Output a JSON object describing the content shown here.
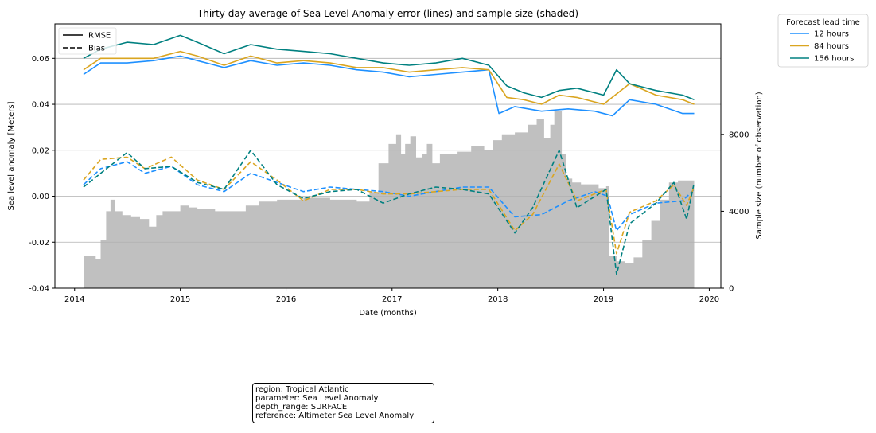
{
  "chart_data": {
    "type": "line",
    "title": "Thirty day average of Sea Level Anomaly error (lines) and sample size (shaded)",
    "xlabel": "Date (months)",
    "ylabel": "Sea level anomaly [Meters]",
    "y2label": "Sample size (number of observation)",
    "xlim": [
      "2013-10-25",
      "2020-02-10"
    ],
    "ylim": [
      -0.04,
      0.075
    ],
    "y2lim": [
      0,
      13750
    ],
    "x_ticks": [
      "2014",
      "2015",
      "2016",
      "2017",
      "2018",
      "2019",
      "2020"
    ],
    "y_ticks": [
      "-0.04",
      "-0.02",
      "0.00",
      "0.02",
      "0.04",
      "0.06"
    ],
    "y2_ticks": [
      "0",
      "4000",
      "8000"
    ],
    "grid": "horizontal",
    "style_legend": [
      {
        "label": "RMSE",
        "dash": "solid"
      },
      {
        "label": "Bias",
        "dash": "dashed"
      }
    ],
    "lead_legend": {
      "title": "Forecast lead time",
      "entries": [
        {
          "label": "12 hours",
          "color": "#1e90ff"
        },
        {
          "label": "84 hours",
          "color": "#daa520"
        },
        {
          "label": "156 hours",
          "color": "#008080"
        }
      ]
    },
    "sample_size": {
      "color": "#c0c0c0",
      "points": [
        [
          "2014-02-01",
          1700
        ],
        [
          "2014-02-25",
          1700
        ],
        [
          "2014-03-15",
          1500
        ],
        [
          "2014-04-01",
          2500
        ],
        [
          "2014-04-20",
          4000
        ],
        [
          "2014-05-05",
          4600
        ],
        [
          "2014-05-20",
          4000
        ],
        [
          "2014-06-15",
          3800
        ],
        [
          "2014-07-15",
          3700
        ],
        [
          "2014-08-15",
          3600
        ],
        [
          "2014-09-15",
          3200
        ],
        [
          "2014-10-10",
          3800
        ],
        [
          "2014-11-01",
          4000
        ],
        [
          "2014-12-01",
          4000
        ],
        [
          "2015-01-01",
          4300
        ],
        [
          "2015-02-01",
          4200
        ],
        [
          "2015-03-01",
          4100
        ],
        [
          "2015-05-01",
          4000
        ],
        [
          "2015-07-01",
          4000
        ],
        [
          "2015-08-15",
          4300
        ],
        [
          "2015-10-01",
          4500
        ],
        [
          "2015-12-01",
          4600
        ],
        [
          "2016-03-01",
          4700
        ],
        [
          "2016-06-01",
          4600
        ],
        [
          "2016-09-01",
          4500
        ],
        [
          "2016-10-15",
          5000
        ],
        [
          "2016-11-15",
          6500
        ],
        [
          "2016-12-20",
          7500
        ],
        [
          "2017-01-15",
          8000
        ],
        [
          "2017-02-01",
          7000
        ],
        [
          "2017-02-15",
          7500
        ],
        [
          "2017-03-05",
          7900
        ],
        [
          "2017-03-25",
          6800
        ],
        [
          "2017-04-15",
          7000
        ],
        [
          "2017-05-01",
          7500
        ],
        [
          "2017-05-20",
          6500
        ],
        [
          "2017-06-15",
          7000
        ],
        [
          "2017-08-15",
          7100
        ],
        [
          "2017-10-01",
          7400
        ],
        [
          "2017-11-15",
          7200
        ],
        [
          "2017-12-15",
          7700
        ],
        [
          "2018-01-15",
          8000
        ],
        [
          "2018-03-01",
          8100
        ],
        [
          "2018-04-15",
          8500
        ],
        [
          "2018-05-15",
          8800
        ],
        [
          "2018-06-10",
          7800
        ],
        [
          "2018-07-01",
          8500
        ],
        [
          "2018-07-15",
          9200
        ],
        [
          "2018-08-10",
          7000
        ],
        [
          "2018-08-25",
          5700
        ],
        [
          "2018-09-15",
          5500
        ],
        [
          "2018-10-15",
          5400
        ],
        [
          "2018-12-15",
          5200
        ],
        [
          "2019-01-10",
          5300
        ],
        [
          "2019-01-20",
          1700
        ],
        [
          "2019-02-15",
          1400
        ],
        [
          "2019-03-15",
          1300
        ],
        [
          "2019-04-15",
          1600
        ],
        [
          "2019-05-15",
          2500
        ],
        [
          "2019-06-15",
          3500
        ],
        [
          "2019-07-15",
          4600
        ],
        [
          "2019-08-15",
          5500
        ],
        [
          "2019-09-15",
          5600
        ],
        [
          "2019-10-15",
          5600
        ],
        [
          "2019-11-10",
          5500
        ]
      ]
    },
    "series": [
      {
        "name": "12 hours",
        "metric": "RMSE",
        "color": "#1e90ff",
        "dash": "solid",
        "points": [
          [
            "2014-02-01",
            0.053
          ],
          [
            "2014-04-01",
            0.058
          ],
          [
            "2014-07-01",
            0.058
          ],
          [
            "2014-10-01",
            0.059
          ],
          [
            "2015-01-01",
            0.061
          ],
          [
            "2015-03-01",
            0.059
          ],
          [
            "2015-06-01",
            0.056
          ],
          [
            "2015-09-01",
            0.059
          ],
          [
            "2015-12-01",
            0.057
          ],
          [
            "2016-03-01",
            0.058
          ],
          [
            "2016-06-01",
            0.057
          ],
          [
            "2016-09-01",
            0.055
          ],
          [
            "2016-12-01",
            0.054
          ],
          [
            "2017-03-01",
            0.052
          ],
          [
            "2017-06-01",
            0.053
          ],
          [
            "2017-09-01",
            0.054
          ],
          [
            "2017-12-01",
            0.055
          ],
          [
            "2018-01-05",
            0.036
          ],
          [
            "2018-03-01",
            0.039
          ],
          [
            "2018-06-01",
            0.037
          ],
          [
            "2018-09-01",
            0.038
          ],
          [
            "2018-12-01",
            0.037
          ],
          [
            "2019-02-01",
            0.035
          ],
          [
            "2019-04-01",
            0.042
          ],
          [
            "2019-07-01",
            0.04
          ],
          [
            "2019-10-01",
            0.036
          ],
          [
            "2019-11-10",
            0.036
          ]
        ]
      },
      {
        "name": "84 hours",
        "metric": "RMSE",
        "color": "#daa520",
        "dash": "solid",
        "points": [
          [
            "2014-02-01",
            0.055
          ],
          [
            "2014-04-01",
            0.06
          ],
          [
            "2014-07-01",
            0.06
          ],
          [
            "2014-10-01",
            0.06
          ],
          [
            "2015-01-01",
            0.063
          ],
          [
            "2015-03-01",
            0.061
          ],
          [
            "2015-06-01",
            0.057
          ],
          [
            "2015-09-01",
            0.061
          ],
          [
            "2015-12-01",
            0.058
          ],
          [
            "2016-03-01",
            0.059
          ],
          [
            "2016-06-01",
            0.058
          ],
          [
            "2016-09-01",
            0.056
          ],
          [
            "2016-12-01",
            0.056
          ],
          [
            "2017-03-01",
            0.054
          ],
          [
            "2017-06-01",
            0.055
          ],
          [
            "2017-09-01",
            0.056
          ],
          [
            "2017-12-01",
            0.055
          ],
          [
            "2018-02-01",
            0.043
          ],
          [
            "2018-04-01",
            0.042
          ],
          [
            "2018-06-01",
            0.04
          ],
          [
            "2018-08-01",
            0.044
          ],
          [
            "2018-10-01",
            0.043
          ],
          [
            "2019-01-01",
            0.04
          ],
          [
            "2019-04-01",
            0.049
          ],
          [
            "2019-07-01",
            0.044
          ],
          [
            "2019-10-01",
            0.042
          ],
          [
            "2019-11-10",
            0.04
          ]
        ]
      },
      {
        "name": "156 hours",
        "metric": "RMSE",
        "color": "#008080",
        "dash": "solid",
        "points": [
          [
            "2014-02-01",
            0.06
          ],
          [
            "2014-04-01",
            0.064
          ],
          [
            "2014-07-01",
            0.067
          ],
          [
            "2014-10-01",
            0.066
          ],
          [
            "2015-01-01",
            0.07
          ],
          [
            "2015-03-01",
            0.067
          ],
          [
            "2015-06-01",
            0.062
          ],
          [
            "2015-09-01",
            0.066
          ],
          [
            "2015-12-01",
            0.064
          ],
          [
            "2016-03-01",
            0.063
          ],
          [
            "2016-06-01",
            0.062
          ],
          [
            "2016-09-01",
            0.06
          ],
          [
            "2016-12-01",
            0.058
          ],
          [
            "2017-03-01",
            0.057
          ],
          [
            "2017-06-01",
            0.058
          ],
          [
            "2017-09-01",
            0.06
          ],
          [
            "2017-12-01",
            0.057
          ],
          [
            "2018-02-01",
            0.048
          ],
          [
            "2018-04-01",
            0.045
          ],
          [
            "2018-06-01",
            0.043
          ],
          [
            "2018-08-01",
            0.046
          ],
          [
            "2018-10-01",
            0.047
          ],
          [
            "2019-01-01",
            0.044
          ],
          [
            "2019-02-15",
            0.055
          ],
          [
            "2019-04-01",
            0.049
          ],
          [
            "2019-07-01",
            0.046
          ],
          [
            "2019-10-01",
            0.044
          ],
          [
            "2019-11-10",
            0.042
          ]
        ]
      },
      {
        "name": "12 hours",
        "metric": "Bias",
        "color": "#1e90ff",
        "dash": "dashed",
        "points": [
          [
            "2014-02-01",
            0.005
          ],
          [
            "2014-04-01",
            0.012
          ],
          [
            "2014-07-01",
            0.015
          ],
          [
            "2014-09-01",
            0.01
          ],
          [
            "2014-12-01",
            0.013
          ],
          [
            "2015-03-01",
            0.005
          ],
          [
            "2015-06-01",
            0.002
          ],
          [
            "2015-09-01",
            0.01
          ],
          [
            "2015-12-01",
            0.006
          ],
          [
            "2016-03-01",
            0.002
          ],
          [
            "2016-06-01",
            0.004
          ],
          [
            "2016-09-01",
            0.003
          ],
          [
            "2016-12-01",
            0.002
          ],
          [
            "2017-03-01",
            0.0
          ],
          [
            "2017-06-01",
            0.002
          ],
          [
            "2017-09-01",
            0.004
          ],
          [
            "2017-12-01",
            0.004
          ],
          [
            "2018-03-01",
            -0.009
          ],
          [
            "2018-06-01",
            -0.008
          ],
          [
            "2018-09-01",
            -0.002
          ],
          [
            "2018-12-01",
            0.002
          ],
          [
            "2019-01-15",
            0.0
          ],
          [
            "2019-02-15",
            -0.015
          ],
          [
            "2019-04-01",
            -0.008
          ],
          [
            "2019-07-01",
            -0.003
          ],
          [
            "2019-10-01",
            -0.002
          ],
          [
            "2019-11-10",
            0.003
          ]
        ]
      },
      {
        "name": "84 hours",
        "metric": "Bias",
        "color": "#daa520",
        "dash": "dashed",
        "points": [
          [
            "2014-02-01",
            0.007
          ],
          [
            "2014-04-01",
            0.016
          ],
          [
            "2014-07-01",
            0.017
          ],
          [
            "2014-09-01",
            0.012
          ],
          [
            "2014-12-01",
            0.017
          ],
          [
            "2015-03-01",
            0.007
          ],
          [
            "2015-06-01",
            0.003
          ],
          [
            "2015-09-01",
            0.015
          ],
          [
            "2015-12-01",
            0.007
          ],
          [
            "2016-03-01",
            -0.002
          ],
          [
            "2016-06-01",
            0.003
          ],
          [
            "2016-09-01",
            0.003
          ],
          [
            "2016-12-01",
            0.001
          ],
          [
            "2017-03-01",
            0.001
          ],
          [
            "2017-06-01",
            0.002
          ],
          [
            "2017-09-01",
            0.003
          ],
          [
            "2017-12-01",
            0.003
          ],
          [
            "2018-03-01",
            -0.015
          ],
          [
            "2018-05-01",
            -0.008
          ],
          [
            "2018-08-01",
            0.014
          ],
          [
            "2018-10-01",
            -0.002
          ],
          [
            "2019-01-10",
            0.003
          ],
          [
            "2019-02-15",
            -0.025
          ],
          [
            "2019-04-01",
            -0.007
          ],
          [
            "2019-07-01",
            -0.002
          ],
          [
            "2019-09-01",
            0.005
          ],
          [
            "2019-10-15",
            -0.004
          ],
          [
            "2019-11-10",
            0.004
          ]
        ]
      },
      {
        "name": "156 hours",
        "metric": "Bias",
        "color": "#008080",
        "dash": "dashed",
        "points": [
          [
            "2014-02-01",
            0.004
          ],
          [
            "2014-04-01",
            0.01
          ],
          [
            "2014-07-01",
            0.019
          ],
          [
            "2014-09-01",
            0.012
          ],
          [
            "2014-12-01",
            0.013
          ],
          [
            "2015-03-01",
            0.006
          ],
          [
            "2015-06-01",
            0.003
          ],
          [
            "2015-09-01",
            0.02
          ],
          [
            "2015-12-01",
            0.005
          ],
          [
            "2016-03-01",
            -0.001
          ],
          [
            "2016-06-01",
            0.002
          ],
          [
            "2016-09-01",
            0.003
          ],
          [
            "2016-12-01",
            -0.003
          ],
          [
            "2017-03-01",
            0.001
          ],
          [
            "2017-06-01",
            0.004
          ],
          [
            "2017-09-01",
            0.003
          ],
          [
            "2017-12-01",
            0.001
          ],
          [
            "2018-03-01",
            -0.016
          ],
          [
            "2018-05-01",
            -0.005
          ],
          [
            "2018-08-01",
            0.02
          ],
          [
            "2018-10-01",
            -0.005
          ],
          [
            "2019-01-10",
            0.003
          ],
          [
            "2019-02-15",
            -0.034
          ],
          [
            "2019-04-01",
            -0.012
          ],
          [
            "2019-07-01",
            -0.003
          ],
          [
            "2019-09-01",
            0.006
          ],
          [
            "2019-10-15",
            -0.01
          ],
          [
            "2019-11-10",
            0.006
          ]
        ]
      }
    ]
  },
  "info_box": {
    "lines": [
      "region: Tropical Atlantic",
      "parameter: Sea Level Anomaly",
      "depth_range: SURFACE",
      "reference: Altimeter Sea Level Anomaly"
    ]
  }
}
